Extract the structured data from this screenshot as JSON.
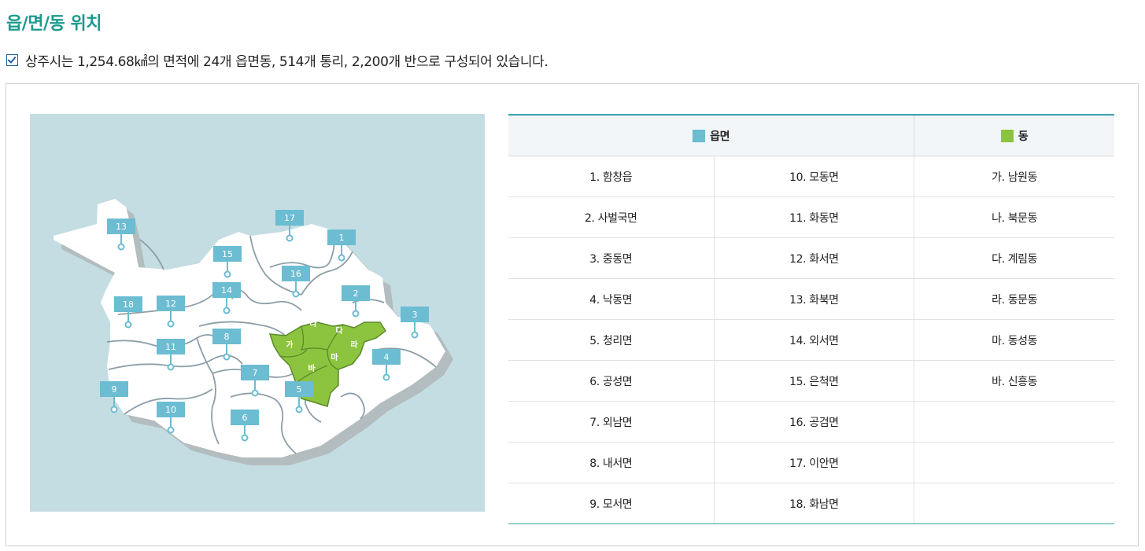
{
  "title": "읍/면/동 위치",
  "summary": "상주시는 1,254.68㎢의 면적에 24개 읍면동, 514개 통리, 2,200개 반으로 구성되어 있습니다.",
  "colors": {
    "accent": "#1b9a8c",
    "eupmyeon": "#6cbcd2",
    "dong": "#8cc43f",
    "map_bg": "#c4dde3"
  },
  "legend": {
    "eupmyeon_header": "읍면",
    "dong_header": "동",
    "rows": [
      {
        "a": "1. 함창읍",
        "b": "10. 모동면",
        "c": "가. 남원동"
      },
      {
        "a": "2. 사벌국면",
        "b": "11. 화동면",
        "c": "나. 북문동"
      },
      {
        "a": "3. 중동면",
        "b": "12. 화서면",
        "c": "다. 계림동"
      },
      {
        "a": "4. 낙동면",
        "b": "13. 화북면",
        "c": "라. 동문동"
      },
      {
        "a": "5. 청리면",
        "b": "14. 외서면",
        "c": "마. 동성동"
      },
      {
        "a": "6. 공성면",
        "b": "15. 은척면",
        "c": "바. 신흥동"
      },
      {
        "a": "7. 외남면",
        "b": "16. 공검면",
        "c": ""
      },
      {
        "a": "8. 내서면",
        "b": "17. 이안면",
        "c": ""
      },
      {
        "a": "9. 모서면",
        "b": "18. 화남면",
        "c": ""
      }
    ]
  },
  "map": {
    "markers": [
      "1",
      "2",
      "3",
      "4",
      "5",
      "6",
      "7",
      "8",
      "9",
      "10",
      "11",
      "12",
      "13",
      "14",
      "15",
      "16",
      "17",
      "18"
    ],
    "dong_labels": [
      "가",
      "나",
      "다",
      "라",
      "마",
      "바"
    ]
  }
}
